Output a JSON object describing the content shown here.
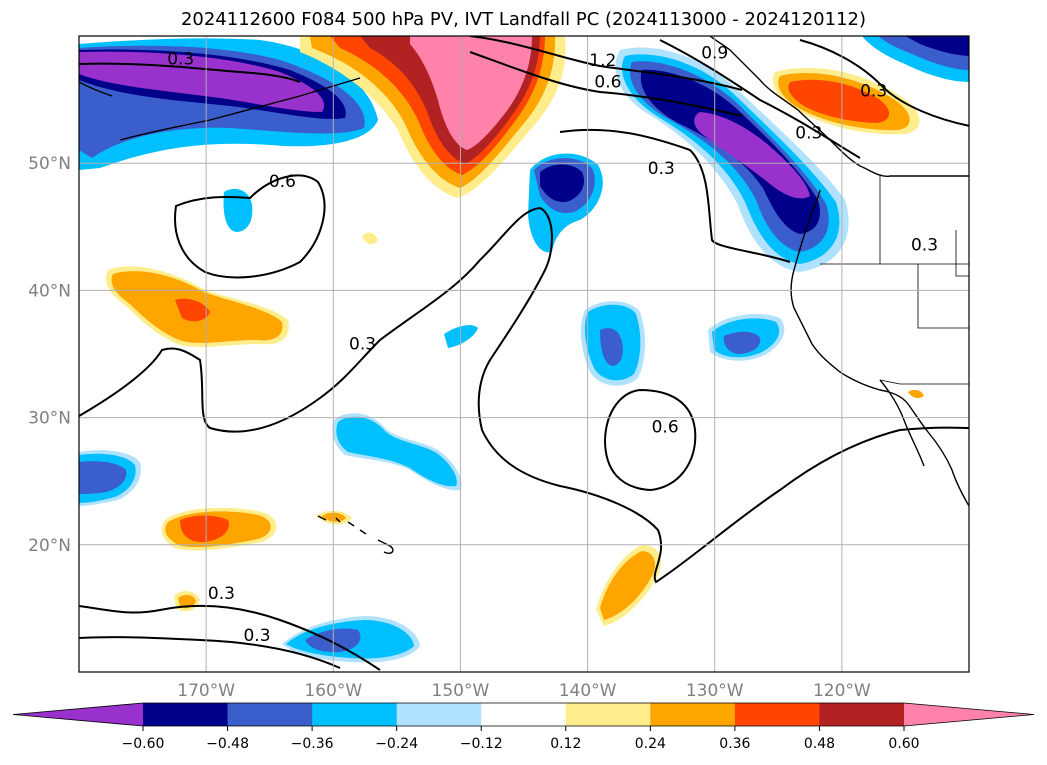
{
  "title": "2024112600 F084 500 hPa PV, IVT Landfall PC (2024113000 - 2024120112)",
  "map": {
    "extent": {
      "lon_min": -180,
      "lon_max": -110,
      "lat_min": 10,
      "lat_max": 60
    },
    "gridlines": true,
    "lat_ticks": [
      {
        "value": 20,
        "label": "20°N"
      },
      {
        "value": 30,
        "label": "30°N"
      },
      {
        "value": 40,
        "label": "40°N"
      },
      {
        "value": 50,
        "label": "50°N"
      }
    ],
    "lon_ticks": [
      {
        "value": -170,
        "label": "170°W"
      },
      {
        "value": -160,
        "label": "160°W"
      },
      {
        "value": -150,
        "label": "150°W"
      },
      {
        "value": -140,
        "label": "140°W"
      },
      {
        "value": -130,
        "label": "130°W"
      },
      {
        "value": -120,
        "label": "120°W"
      }
    ],
    "contour_labels": [
      {
        "text": "0.3",
        "lon": -172,
        "lat": 57.9
      },
      {
        "text": "1.2",
        "lon": -138.8,
        "lat": 57.8
      },
      {
        "text": "0.9",
        "lon": -130,
        "lat": 58.4
      },
      {
        "text": "0.6",
        "lon": -138.4,
        "lat": 56.1
      },
      {
        "text": "0.6",
        "lon": -164,
        "lat": 48.3
      },
      {
        "text": "0.3",
        "lon": -134.2,
        "lat": 49.3
      },
      {
        "text": "0.3",
        "lon": -117.5,
        "lat": 55.4
      },
      {
        "text": "0.3",
        "lon": -122.6,
        "lat": 52.1
      },
      {
        "text": "0.3",
        "lon": -113.5,
        "lat": 43.3
      },
      {
        "text": "0.3",
        "lon": -157.7,
        "lat": 35.5
      },
      {
        "text": "0.6",
        "lon": -133.9,
        "lat": 29
      },
      {
        "text": "0.3",
        "lon": -168.8,
        "lat": 15.9
      },
      {
        "text": "0.3",
        "lon": -166,
        "lat": 12.6
      }
    ]
  },
  "colorbar": {
    "colors": [
      "#9932cc",
      "#00008b",
      "#3a5fcd",
      "#00bfff",
      "#b0e2ff",
      "#ffffff",
      "#ffec8b",
      "#ffa500",
      "#ff4500",
      "#b22222",
      "#ff82ab"
    ],
    "tick_values": [
      -0.6,
      -0.48,
      -0.36,
      -0.24,
      -0.12,
      0.12,
      0.24,
      0.36,
      0.48,
      0.6
    ],
    "tick_labels": [
      "−0.60",
      "−0.48",
      "−0.36",
      "−0.24",
      "−0.12",
      "0.12",
      "0.24",
      "0.36",
      "0.48",
      "0.60"
    ]
  }
}
